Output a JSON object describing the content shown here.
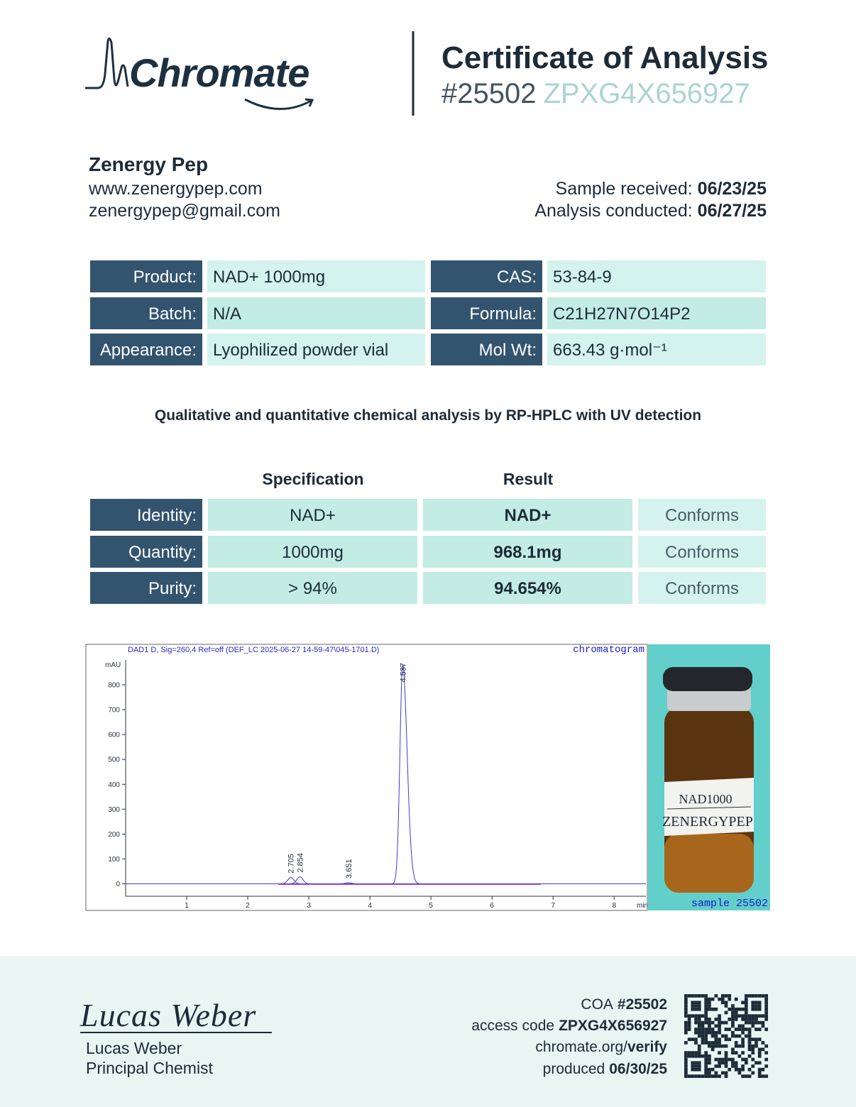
{
  "header": {
    "logo": "Chromate",
    "title": "Certificate of Analysis",
    "number": "#25502",
    "access_code": "ZPXG4X656927"
  },
  "client": {
    "name": "Zenergy Pep",
    "website": "www.zenergypep.com",
    "email": "zenergypep@gmail.com"
  },
  "dates": {
    "received_label": "Sample received:",
    "received": "06/23/25",
    "conducted_label": "Analysis conducted:",
    "conducted": "06/27/25"
  },
  "product_table": {
    "rows": [
      [
        "Product:",
        "NAD+ 1000mg",
        "CAS:",
        "53-84-9"
      ],
      [
        "Batch:",
        "N/A",
        "Formula:",
        "C21H27N7O14P2"
      ],
      [
        "Appearance:",
        "Lyophilized powder vial",
        "Mol Wt:",
        "663.43 g·mol⁻¹"
      ]
    ]
  },
  "method": "Qualitative and quantitative chemical analysis by RP-HPLC with UV detection",
  "results_table": {
    "headers": [
      "Specification",
      "Result"
    ],
    "rows": [
      [
        "Identity:",
        "NAD+",
        "NAD+",
        "Conforms"
      ],
      [
        "Quantity:",
        "1000mg",
        "968.1mg",
        "Conforms"
      ],
      [
        "Purity:",
        "> 94%",
        "94.654%",
        "Conforms"
      ]
    ]
  },
  "chromatogram": {
    "type": "line",
    "title": "DAD1 D, Sig=260,4 Ref=off (DEF_LC 2025-06-27 14-59-47\\045-1701.D)",
    "label": "chromatogram",
    "y_label": "mAU",
    "x_label": "min",
    "xlim": [
      0,
      8.52
    ],
    "ylim": [
      -50,
      900
    ],
    "xticks": [
      1,
      2,
      3,
      4,
      5,
      6,
      7,
      8
    ],
    "yticks": [
      0,
      100,
      200,
      300,
      400,
      500,
      600,
      700,
      800
    ],
    "color": "#3a3ad6",
    "peaks": [
      {
        "time": 2.705,
        "height": 25
      },
      {
        "time": 2.854,
        "height": 28
      },
      {
        "time": 3.651,
        "height": 4
      },
      {
        "time": 4.537,
        "height": 880
      }
    ]
  },
  "sample_photo": {
    "label_line1": "NAD1000",
    "label_line2": "ZENERGYPEP",
    "caption": "sample 25502"
  },
  "footer": {
    "signature": "Lucas Weber",
    "name": "Lucas Weber",
    "role": "Principal Chemist",
    "coa_label": "COA",
    "coa_number": "#25502",
    "access_label": "access code",
    "access_code": "ZPXG4X656927",
    "site": "chromate.org/",
    "site_path": "verify",
    "produced_label": "produced",
    "produced": "06/30/25"
  }
}
